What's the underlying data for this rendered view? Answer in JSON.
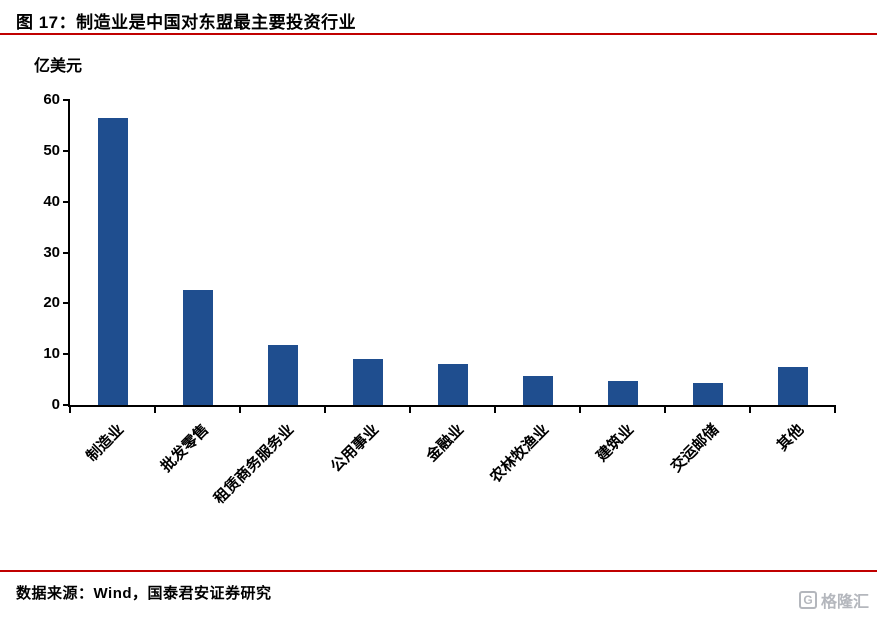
{
  "header": {
    "title": "图 17：制造业是中国对东盟最主要投资行业"
  },
  "chart_data": {
    "type": "bar",
    "title": "图 17：制造业是中国对东盟最主要投资行业",
    "unit_label": "亿美元",
    "categories": [
      "制造业",
      "批发零售",
      "租赁商务服务业",
      "公用事业",
      "金融业",
      "农林牧渔业",
      "建筑业",
      "交运邮储",
      "其他"
    ],
    "values": [
      56.5,
      22.7,
      11.9,
      9.0,
      8.0,
      5.8,
      4.8,
      4.4,
      7.5
    ],
    "ylabel": "亿美元",
    "xlabel": "",
    "ylim": [
      0,
      60
    ],
    "ytick_step": 10,
    "yticks": [
      0,
      10,
      20,
      30,
      40,
      50,
      60
    ],
    "grid": false,
    "legend": "none",
    "bar_color": "#1F4E8F"
  },
  "footer": {
    "source": "数据来源：Wind，国泰君安证券研究"
  },
  "watermark": {
    "logo_letter": "G",
    "text": "格隆汇"
  },
  "colors": {
    "accent_red": "#C00000",
    "bar": "#1F4E8F",
    "axis": "#000000",
    "watermark_gray": "#b4b7bd"
  }
}
